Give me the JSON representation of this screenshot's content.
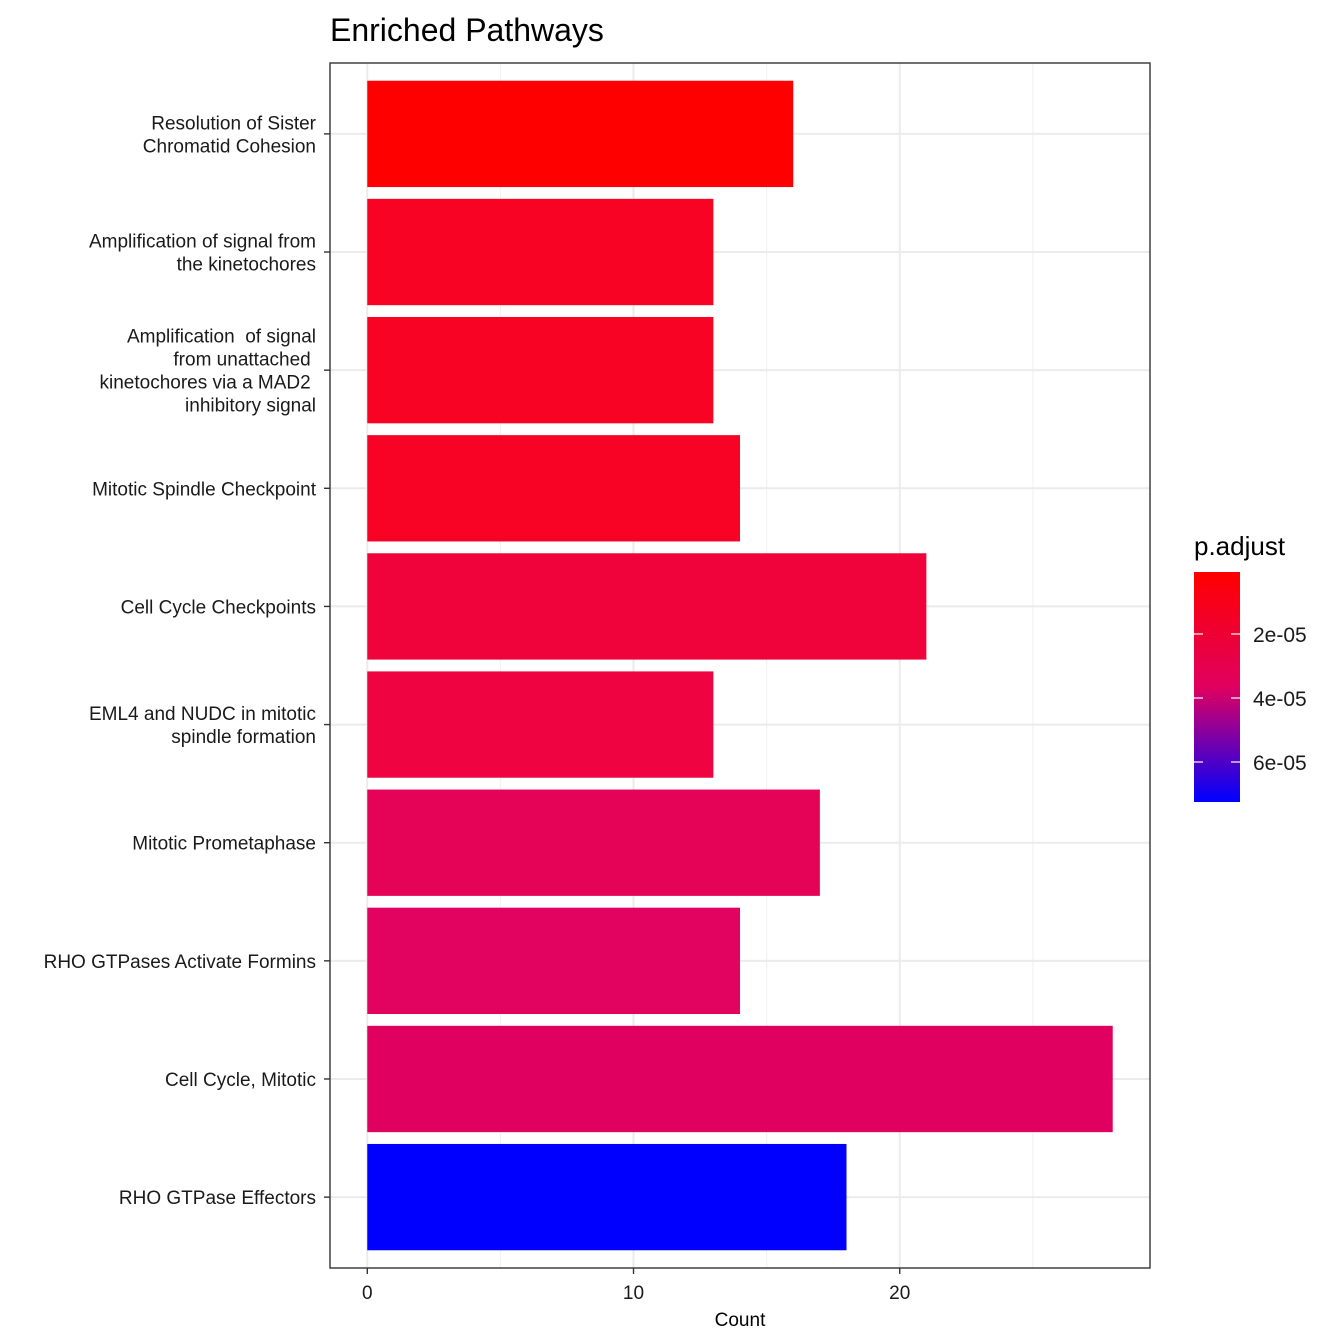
{
  "chart_data": {
    "type": "bar",
    "orientation": "horizontal",
    "title": "Enriched Pathways",
    "xlabel": "Count",
    "ylabel": "",
    "xlim": [
      -1.4,
      29.4
    ],
    "xticks": [
      0,
      10,
      20
    ],
    "grid": true,
    "categories": [
      "Resolution of Sister\nChromatid Cohesion",
      "Amplification of signal from\nthe kinetochores",
      "Amplification  of signal\nfrom unattached \nkinetochores via a MAD2 \ninhibitory signal",
      "Mitotic Spindle Checkpoint",
      "Cell Cycle Checkpoints",
      "EML4 and NUDC in mitotic\nspindle formation",
      "Mitotic Prometaphase",
      "RHO GTPases Activate Formins",
      "Cell Cycle, Mitotic",
      "RHO GTPase Effectors"
    ],
    "values": [
      16,
      13,
      13,
      14,
      21,
      13,
      17,
      14,
      28,
      18
    ],
    "colors": [
      "#ff0000",
      "#f80324",
      "#f80324",
      "#f80326",
      "#f0033a",
      "#ef0340",
      "#e40356",
      "#e1035f",
      "#e00060",
      "#0000ff"
    ],
    "legend": {
      "title": "p.adjust",
      "position": "right",
      "ticks": [
        "2e-05",
        "4e-05",
        "6e-05"
      ],
      "gradient": [
        "#ff0000",
        "#0000ff"
      ]
    }
  }
}
